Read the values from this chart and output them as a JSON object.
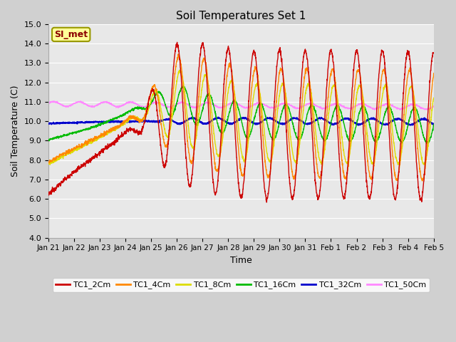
{
  "title": "Soil Temperatures Set 1",
  "xlabel": "Time",
  "ylabel": "Soil Temperature (C)",
  "ylim": [
    4.0,
    15.0
  ],
  "yticks": [
    4.0,
    5.0,
    6.0,
    7.0,
    8.0,
    9.0,
    10.0,
    11.0,
    12.0,
    13.0,
    14.0,
    15.0
  ],
  "fig_bg": "#d0d0d0",
  "plot_bg": "#e8e8e8",
  "grid_color": "#ffffff",
  "annotation_text": "SI_met",
  "annotation_bg": "#ffff99",
  "annotation_border": "#999900",
  "series_colors": {
    "TC1_2Cm": "#cc0000",
    "TC1_4Cm": "#ff8800",
    "TC1_8Cm": "#dddd00",
    "TC1_16Cm": "#00bb00",
    "TC1_32Cm": "#0000cc",
    "TC1_50Cm": "#ff88ff"
  },
  "legend_labels": [
    "TC1_2Cm",
    "TC1_4Cm",
    "TC1_8Cm",
    "TC1_16Cm",
    "TC1_32Cm",
    "TC1_50Cm"
  ],
  "legend_colors": [
    "#cc0000",
    "#ff8800",
    "#dddd00",
    "#00bb00",
    "#0000cc",
    "#ff88ff"
  ],
  "xtick_labels": [
    "Jan 21",
    "Jan 22",
    "Jan 23",
    "Jan 24",
    "Jan 25",
    "Jan 26",
    "Jan 27",
    "Jan 28",
    "Jan 29",
    "Jan 30",
    "Jan 31",
    "Feb 1",
    "Feb 2",
    "Feb 3",
    "Feb 4",
    "Feb 5"
  ],
  "n_days": 15,
  "pts_per_day": 144,
  "figsize": [
    6.4,
    4.8
  ],
  "dpi": 100
}
